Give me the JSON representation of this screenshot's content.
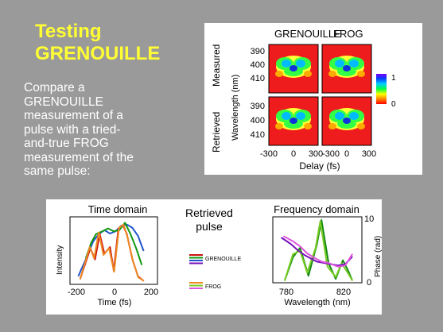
{
  "slide": {
    "title_line1": "Testing",
    "title_line2": "GRENOUILLE",
    "body": [
      "Compare a",
      "GRENOUILLE",
      "measurement of a",
      "pulse with a tried-",
      "and-true FROG",
      "measurement of the",
      "same pulse:"
    ]
  },
  "frog_figure": {
    "col_labels": [
      "GRENOUILLE",
      "FROG"
    ],
    "row_labels": [
      "Measured",
      "Retrieved"
    ],
    "y_axis_label": "Wavelength (nm)",
    "y_ticks": [
      "390",
      "400",
      "410"
    ],
    "x_ticks": [
      "-300",
      "0",
      "300",
      "-300",
      "0",
      "300"
    ],
    "x_axis_label": "Delay (fs)",
    "colorbar_ticks": [
      "1",
      "0"
    ],
    "colors": {
      "background": "#ee1c1c",
      "colorbar": [
        "#7a00ff",
        "#0040ff",
        "#00ccff",
        "#00ff44",
        "#ffff00",
        "#ff8800",
        "#ff0000"
      ]
    }
  },
  "time_plot": {
    "title": "Time domain",
    "y_label": "Intensity",
    "x_label": "Time (fs)",
    "x_ticks": [
      "-200",
      "0",
      "200"
    ],
    "chart_data": {
      "type": "line",
      "x_label": "Time (fs)",
      "y_label": "Intensity",
      "xlim": [
        -200,
        200
      ],
      "series": [
        {
          "name": "GRENOUILLE",
          "color": "#2255cc",
          "points": [
            [
              -190,
              0.1
            ],
            [
              -150,
              0.4
            ],
            [
              -110,
              0.72
            ],
            [
              -80,
              0.85
            ],
            [
              -50,
              0.92
            ],
            [
              -20,
              0.86
            ],
            [
              10,
              0.9
            ],
            [
              40,
              1.0
            ],
            [
              70,
              1.02
            ],
            [
              100,
              0.96
            ],
            [
              130,
              0.82
            ],
            [
              160,
              0.55
            ]
          ]
        },
        {
          "name": "GRENOUILLE",
          "color": "#cc1111",
          "points": [
            [
              -180,
              0.05
            ],
            [
              -150,
              0.35
            ],
            [
              -125,
              0.6
            ],
            [
              -100,
              0.4
            ],
            [
              -75,
              0.85
            ],
            [
              -50,
              0.5
            ],
            [
              -20,
              0.62
            ],
            [
              0,
              0.2
            ],
            [
              25,
              0.95
            ],
            [
              50,
              1.0
            ],
            [
              70,
              0.85
            ],
            [
              100,
              0.4
            ],
            [
              130,
              0.1
            ],
            [
              160,
              0.02
            ]
          ]
        },
        {
          "name": "GRENOUILLE",
          "color": "#119911",
          "points": [
            [
              -150,
              0.42
            ],
            [
              -120,
              0.7
            ],
            [
              -95,
              0.85
            ],
            [
              -60,
              0.9
            ],
            [
              -30,
              0.95
            ],
            [
              0,
              0.9
            ],
            [
              30,
              0.92
            ],
            [
              60,
              1.05
            ],
            [
              90,
              0.85
            ],
            [
              120,
              0.6
            ],
            [
              150,
              0.3
            ]
          ]
        },
        {
          "name": "FROG",
          "color": "#ee8822",
          "points": [
            [
              -180,
              0.05
            ],
            [
              -150,
              0.38
            ],
            [
              -128,
              0.62
            ],
            [
              -105,
              0.42
            ],
            [
              -80,
              0.88
            ],
            [
              -55,
              0.48
            ],
            [
              -25,
              0.6
            ],
            [
              2,
              0.18
            ],
            [
              28,
              0.96
            ],
            [
              52,
              1.02
            ],
            [
              72,
              0.82
            ],
            [
              102,
              0.38
            ],
            [
              132,
              0.08
            ],
            [
              162,
              0.02
            ]
          ]
        }
      ]
    }
  },
  "frequency_plot": {
    "title": "Frequency domain",
    "x_label": "Wavelength (nm)",
    "x_ticks": [
      "780",
      "820"
    ],
    "right_label": "Phase (rad)",
    "right_ticks": [
      "10",
      "0"
    ],
    "chart_data": {
      "type": "line",
      "x_label": "Wavelength (nm)",
      "y2_label": "Phase (rad)",
      "y2lim": [
        0,
        10
      ],
      "series": [
        {
          "name": "GRENOUILLE",
          "color": "#118811",
          "points": [
            [
              785,
              0.02
            ],
            [
              792,
              0.4
            ],
            [
              798,
              0.55
            ],
            [
              805,
              0.1
            ],
            [
              812,
              0.6
            ],
            [
              816,
              1.0
            ],
            [
              822,
              0.3
            ],
            [
              828,
              0.05
            ],
            [
              834,
              0.35
            ],
            [
              838,
              0.2
            ],
            [
              842,
              0.02
            ]
          ]
        },
        {
          "name": "FROG",
          "color": "#77cc22",
          "points": [
            [
              785,
              0.02
            ],
            [
              792,
              0.45
            ],
            [
              798,
              0.5
            ],
            [
              804,
              0.15
            ],
            [
              811,
              0.55
            ],
            [
              815,
              0.98
            ],
            [
              821,
              0.25
            ],
            [
              828,
              0.08
            ],
            [
              833,
              0.3
            ],
            [
              838,
              0.15
            ],
            [
              842,
              0.02
            ]
          ]
        },
        {
          "name": "GRENOUILLE",
          "color": "#7711bb",
          "points": [
            [
              782,
              7.0
            ],
            [
              790,
              6.0
            ],
            [
              796,
              5.0
            ],
            [
              802,
              4.2
            ],
            [
              808,
              3.6
            ],
            [
              812,
              3.2
            ],
            [
              818,
              3.0
            ],
            [
              824,
              2.8
            ],
            [
              830,
              2.6
            ],
            [
              836,
              2.8
            ],
            [
              842,
              4.0
            ]
          ]
        },
        {
          "name": "FROG",
          "color": "#dd55dd",
          "points": [
            [
              784,
              7.2
            ],
            [
              792,
              6.4
            ],
            [
              798,
              5.6
            ],
            [
              804,
              4.5
            ],
            [
              810,
              3.8
            ],
            [
              816,
              3.2
            ],
            [
              822,
              3.0
            ],
            [
              830,
              2.4
            ],
            [
              836,
              2.6
            ],
            [
              842,
              4.4
            ]
          ]
        }
      ]
    }
  },
  "legend": {
    "title_line1": "Retrieved",
    "title_line2": "pulse",
    "grenouille_label": "GRENOUILLE",
    "grenouille_colors": [
      "#cc1111",
      "#119911",
      "#2255cc",
      "#7711bb"
    ],
    "frog_label": "FROG",
    "frog_colors": [
      "#ee8822",
      "#77cc22",
      "#dd55dd"
    ]
  }
}
